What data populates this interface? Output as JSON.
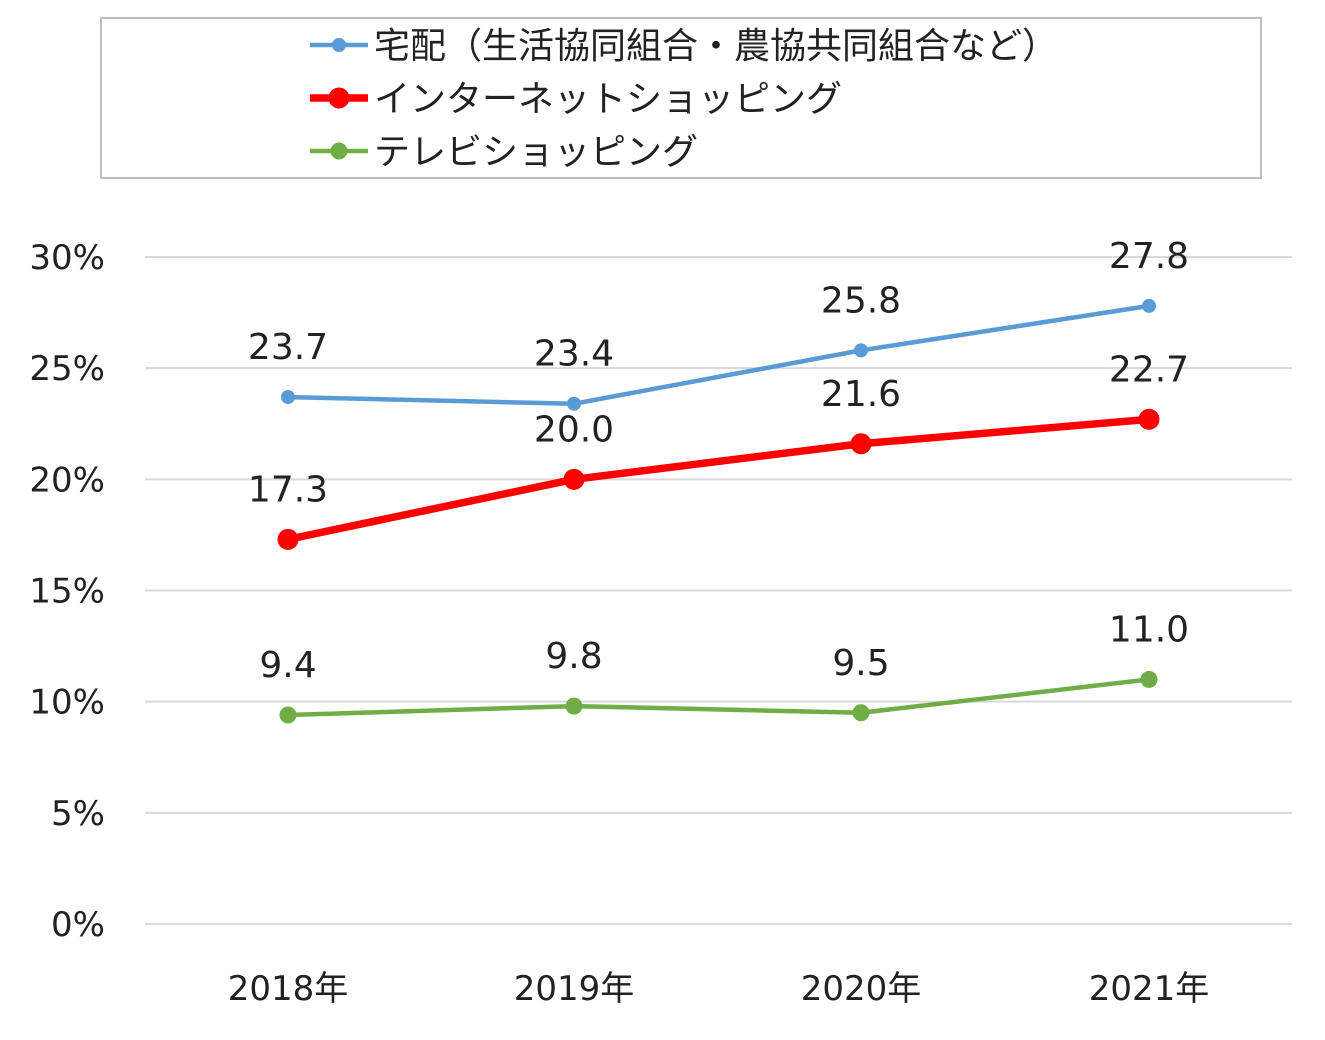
{
  "chart_data": {
    "type": "line",
    "title": "",
    "xlabel": "",
    "ylabel": "",
    "categories": [
      "2018年",
      "2019年",
      "2020年",
      "2021年"
    ],
    "y_ticks": [
      0,
      5,
      10,
      15,
      20,
      25,
      30
    ],
    "y_tick_labels": [
      "0%",
      "5%",
      "10%",
      "15%",
      "20%",
      "25%",
      "30%"
    ],
    "ylim": [
      0,
      30
    ],
    "grid": true,
    "legend_position": "top",
    "series": [
      {
        "name": "宅配（生活協同組合・農協共同組合など）",
        "values": [
          23.7,
          23.4,
          25.8,
          27.8
        ],
        "labels": [
          "23.7",
          "23.4",
          "25.8",
          "27.8"
        ],
        "color": "#5b9bd5"
      },
      {
        "name": "インターネットショッピング",
        "values": [
          17.3,
          20.0,
          21.6,
          22.7
        ],
        "labels": [
          "17.3",
          "20.0",
          "21.6",
          "22.7"
        ],
        "color": "#ff0000"
      },
      {
        "name": "テレビショッピング",
        "values": [
          9.4,
          9.8,
          9.5,
          11.0
        ],
        "labels": [
          "9.4",
          "9.8",
          "9.5",
          "11.0"
        ],
        "color": "#70ad47"
      }
    ]
  }
}
